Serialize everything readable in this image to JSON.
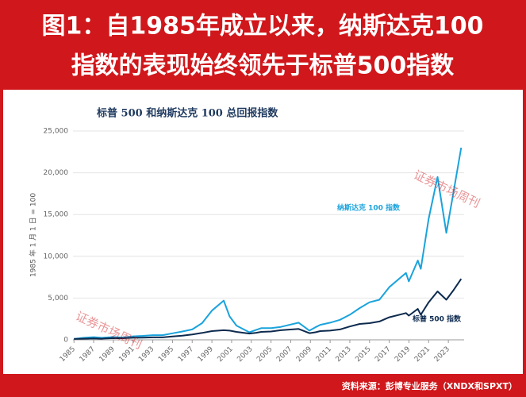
{
  "header": {
    "lines": [
      "图1：自1985年成立以来，纳斯达克100",
      "指数的表现始终领先于标普500指数"
    ]
  },
  "chart_data": {
    "type": "line",
    "title": "标普 500 和纳斯达克 100 总回报指数",
    "y_label": "1985 年 1 月 1 日 = 100",
    "x": [
      1985,
      1986,
      1987,
      1987.8,
      1988,
      1989,
      1990,
      1991,
      1992,
      1993,
      1994,
      1995,
      1996,
      1997,
      1998,
      1999,
      2000.2,
      2000.8,
      2001.5,
      2002.8,
      2003.5,
      2004,
      2005,
      2006,
      2007.8,
      2008.9,
      2009.5,
      2010,
      2011,
      2012,
      2013,
      2014,
      2015,
      2016,
      2017,
      2018.7,
      2018.99,
      2019.9,
      2020.2,
      2021,
      2021.9,
      2022.8,
      2023.5,
      2024.3
    ],
    "series": [
      {
        "name": "纳斯达克 100 指数",
        "color": "#1aa3dc",
        "values": [
          100,
          250,
          320,
          250,
          260,
          330,
          280,
          420,
          480,
          560,
          560,
          780,
          1000,
          1250,
          2000,
          3500,
          4700,
          2800,
          1700,
          900,
          1200,
          1400,
          1400,
          1550,
          2050,
          1100,
          1500,
          1800,
          2050,
          2400,
          3000,
          3800,
          4500,
          4800,
          6300,
          8000,
          7000,
          9500,
          8500,
          14500,
          19500,
          12800,
          17500,
          23000
        ]
      },
      {
        "name": "标普 500 指数",
        "color": "#0d2a4e",
        "values": [
          100,
          130,
          160,
          135,
          150,
          195,
          190,
          250,
          265,
          290,
          290,
          400,
          490,
          650,
          830,
          1050,
          1150,
          1100,
          950,
          750,
          850,
          950,
          1000,
          1150,
          1300,
          800,
          900,
          1050,
          1100,
          1250,
          1600,
          1900,
          2000,
          2200,
          2700,
          3200,
          2900,
          3700,
          3000,
          4500,
          5800,
          4800,
          5900,
          7300
        ]
      }
    ],
    "xlim": [
      1984.9,
      2024.6
    ],
    "xticks": [
      1985,
      1987,
      1989,
      1991,
      1993,
      1995,
      1997,
      1999,
      2001,
      2003,
      2005,
      2007,
      2009,
      2011,
      2013,
      2015,
      2017,
      2019,
      2021,
      2023
    ],
    "ylim": [
      0,
      25000
    ],
    "yticks": [
      0,
      {
        "value": 5000,
        "label": "5,000"
      },
      {
        "value": 10000,
        "label": "10,000"
      },
      {
        "value": 15000,
        "label": "15,000"
      },
      {
        "value": 20000,
        "label": "20,000"
      },
      {
        "value": 25000,
        "label": "25,000"
      }
    ],
    "grid": true,
    "watermark": "证券市场周刊"
  },
  "source": "资料来源：彭博专业服务（XNDX和SPXT）"
}
